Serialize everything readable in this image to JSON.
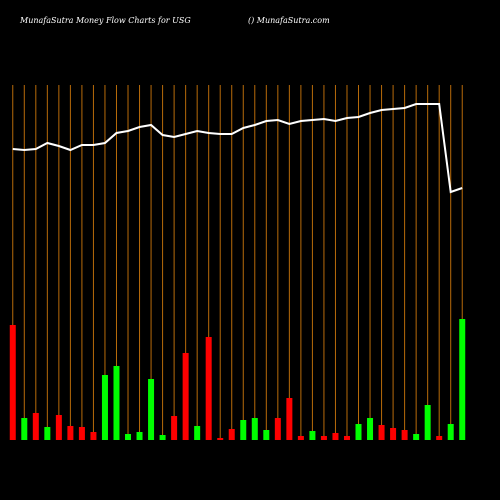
{
  "chart_data": {
    "type": "bar",
    "title": "MunafaSutra  Money Flow  Charts for USG",
    "subtitle": "() MunafaSutra.com",
    "categories": [
      null,
      null,
      null,
      null,
      null,
      null,
      null,
      null,
      null,
      null,
      null,
      null,
      null,
      null,
      null,
      null,
      null,
      null,
      null,
      null,
      null,
      null,
      null,
      null,
      null,
      null,
      null,
      null,
      null,
      null,
      null,
      null,
      null,
      null,
      null,
      null,
      null,
      null,
      null,
      null
    ],
    "series": [
      {
        "color": "#ff0000",
        "up_color": "#00ff00",
        "colors": [
          "#ff0000",
          "#00ff00",
          "#ff0000",
          "#00ff00",
          "#ff0000",
          "#ff0000",
          "#ff0000",
          "#ff0000",
          "#00ff00",
          "#00ff00",
          "#00ff00",
          "#00ff00",
          "#00ff00",
          "#00ff00",
          "#ff0000",
          "#ff0000",
          "#00ff00",
          "#ff0000",
          "#ff0000",
          "#ff0000",
          "#00ff00",
          "#00ff00",
          "#00ff00",
          "#ff0000",
          "#ff0000",
          "#ff0000",
          "#00ff00",
          "#ff0000",
          "#ff0000",
          "#ff0000",
          "#00ff00",
          "#00ff00",
          "#ff0000",
          "#ff0000",
          "#ff0000",
          "#00ff00",
          "#00ff00",
          "#ff0000",
          "#00ff00",
          "#00ff00"
        ],
        "values": [
          115,
          22,
          27,
          13,
          25,
          14,
          13,
          8,
          65,
          74,
          6,
          8,
          61,
          5,
          24,
          87,
          14,
          103,
          2,
          11,
          20,
          22,
          10,
          22,
          42,
          4,
          9,
          4,
          7,
          4,
          16,
          22,
          15,
          12,
          10,
          6,
          35,
          4,
          16,
          121
        ]
      },
      {
        "color": "#ffffff",
        "kind": "line",
        "values": [
          291,
          290,
          291,
          297,
          294,
          290,
          295,
          295,
          297,
          307,
          309,
          313,
          315,
          305,
          303,
          306,
          309,
          307,
          306,
          306,
          312,
          315,
          319,
          320,
          316,
          319,
          320,
          321,
          319,
          322,
          323,
          327,
          330,
          331,
          332,
          336,
          336,
          336,
          248,
          252
        ]
      }
    ],
    "ylim": [
      0,
      440
    ],
    "grid": true,
    "grid_color": "#b86b0a",
    "background": "#000000"
  }
}
